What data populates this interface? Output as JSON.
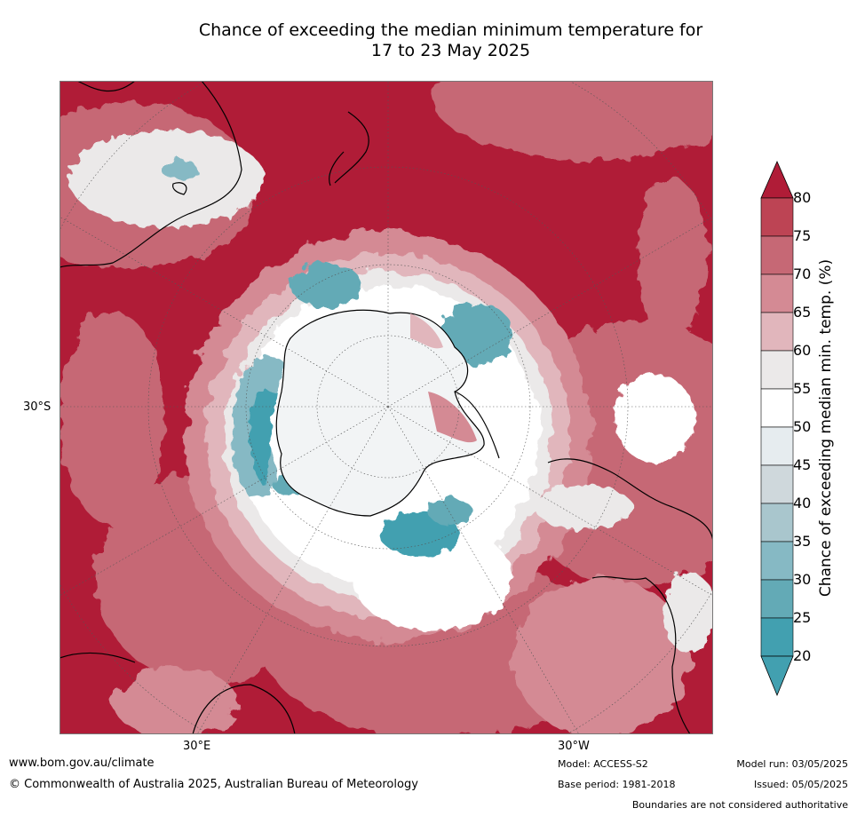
{
  "title": {
    "line1": "Chance of exceeding the median minimum temperature for",
    "line2": "17 to 23 May 2025"
  },
  "map_labels": {
    "lat_label": "30°S",
    "east_label": "30°E",
    "west_label": "30°W"
  },
  "legend": {
    "label": "Chance of exceeding median min. temp. (%)",
    "ticks": [
      "80",
      "75",
      "70",
      "65",
      "60",
      "55",
      "50",
      "45",
      "40",
      "35",
      "30",
      "25",
      "20"
    ],
    "colors": {
      "b80": "#b01c37",
      "b75": "#bd4454",
      "b70": "#c66875",
      "b65": "#d48a94",
      "b60": "#e1b6bc",
      "b55": "#ebe9e9",
      "b50": "#ffffff",
      "b45": "#e6ecef",
      "b40": "#cfd8dc",
      "b35": "#a9c6cd",
      "b30": "#86b9c4",
      "b25": "#63aab6",
      "b20": "#42a0b0"
    }
  },
  "footer": {
    "url": "www.bom.gov.au/climate",
    "copyright": "© Commonwealth of Australia 2025, Australian Bureau of Meteorology",
    "model": "Model: ACCESS-S2",
    "base_period": "Base period: 1981-2018",
    "model_run": "Model run: 03/05/2025",
    "issued": "Issued: 05/05/2025",
    "boundaries": "Boundaries are not considered authoritative"
  }
}
